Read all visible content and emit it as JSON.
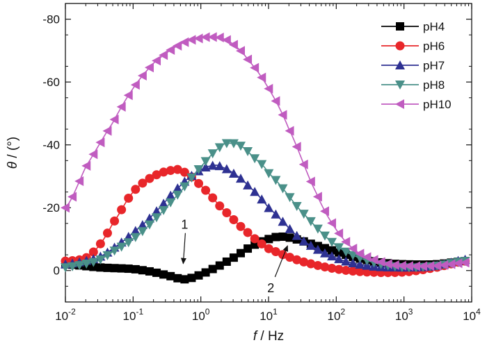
{
  "chart_data": {
    "type": "line",
    "xscale": "log",
    "xlim": [
      0.01,
      10000
    ],
    "ylim": [
      10,
      -85
    ],
    "x_ticks": [
      {
        "value": 0.01,
        "base": "10",
        "exp": "-2"
      },
      {
        "value": 0.1,
        "base": "10",
        "exp": "-1"
      },
      {
        "value": 1,
        "base": "10",
        "exp": "0"
      },
      {
        "value": 10,
        "base": "10",
        "exp": "1"
      },
      {
        "value": 100,
        "base": "10",
        "exp": "2"
      },
      {
        "value": 1000,
        "base": "10",
        "exp": "3"
      },
      {
        "value": 10000,
        "base": "10",
        "exp": "4"
      }
    ],
    "y_ticks": [
      {
        "value": 0,
        "label": "0"
      },
      {
        "value": -20,
        "label": "-20"
      },
      {
        "value": -40,
        "label": "-40"
      },
      {
        "value": -60,
        "label": "-60"
      },
      {
        "value": -80,
        "label": "-80"
      }
    ],
    "xlabel": {
      "var": "f",
      "unit": " / Hz"
    },
    "ylabel": {
      "var": "θ",
      "unit": " / (°)"
    },
    "legend_position": "top-right",
    "grid": false,
    "series": [
      {
        "name": "pH4",
        "color": "#000000",
        "marker": "square",
        "x": [
          0.01,
          0.0316,
          0.1,
          0.2,
          0.4,
          0.55,
          0.8,
          1.5,
          3,
          6,
          10,
          15,
          25,
          50,
          100,
          200,
          500,
          1000,
          3000,
          8000
        ],
        "y": [
          -2,
          -1,
          -0.5,
          0.5,
          2,
          2.8,
          2,
          -0.5,
          -4,
          -8,
          -10,
          -10.8,
          -10,
          -8,
          -6,
          -4,
          -2.5,
          -2,
          -2,
          -3
        ]
      },
      {
        "name": "pH6",
        "color": "#e8262a",
        "marker": "circle",
        "x": [
          0.01,
          0.02,
          0.0316,
          0.05,
          0.1,
          0.2,
          0.4,
          0.55,
          1,
          2,
          5,
          10,
          30,
          100,
          300,
          1000,
          3000,
          8000
        ],
        "y": [
          -3,
          -4,
          -8,
          -15,
          -25,
          -30,
          -32,
          -31.5,
          -27,
          -20,
          -12,
          -7,
          -3,
          -0.5,
          0.5,
          0.5,
          -1,
          -3
        ]
      },
      {
        "name": "pH7",
        "color": "#2e3192",
        "marker": "triangle-up",
        "x": [
          0.01,
          0.03,
          0.05,
          0.1,
          0.2,
          0.5,
          1,
          1.6,
          2,
          3,
          5,
          10,
          30,
          100,
          300,
          1000,
          3000,
          8000
        ],
        "y": [
          -2,
          -4,
          -7,
          -12,
          -18,
          -27,
          -32,
          -33.5,
          -33,
          -31,
          -27,
          -20,
          -10,
          -4,
          -1.5,
          -1,
          -1.5,
          -3.5
        ]
      },
      {
        "name": "pH8",
        "color": "#4a9089",
        "marker": "triangle-down",
        "x": [
          0.01,
          0.03,
          0.05,
          0.1,
          0.2,
          0.5,
          1,
          2,
          2.8,
          4,
          6,
          10,
          30,
          100,
          300,
          1000,
          3000,
          8000
        ],
        "y": [
          -1,
          -3,
          -6,
          -10,
          -16,
          -25,
          -33,
          -39.5,
          -40.5,
          -39.5,
          -36,
          -31,
          -19,
          -8,
          -3,
          -1,
          -1.5,
          -3
        ]
      },
      {
        "name": "pH10",
        "color": "#c05cc0",
        "marker": "triangle-left",
        "x": [
          0.01,
          0.02,
          0.05,
          0.1,
          0.2,
          0.5,
          1,
          1.5,
          2,
          3,
          5,
          10,
          20,
          50,
          100,
          200,
          500,
          1000,
          3000,
          8000
        ],
        "y": [
          -20,
          -33,
          -47,
          -58,
          -66,
          -72,
          -74,
          -74.3,
          -74,
          -72,
          -67,
          -58,
          -45,
          -25,
          -13,
          -6,
          -2.5,
          -1.5,
          -1.5,
          -2.5
        ]
      }
    ],
    "annotations": [
      {
        "text": "1",
        "target_x": 0.55,
        "target_y": 0
      },
      {
        "text": "2",
        "target_x": 20,
        "target_y": -9
      }
    ]
  }
}
